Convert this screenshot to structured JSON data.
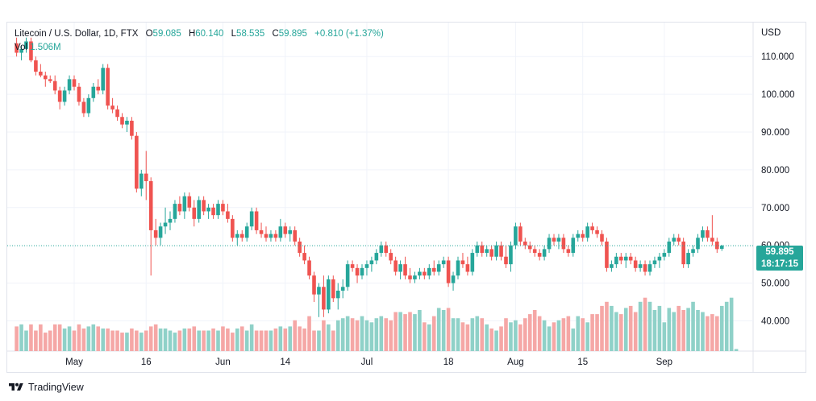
{
  "header": {
    "symbol": "Litecoin / U.S. Dollar, 1D, FTX",
    "open_label": "O",
    "open": "59.085",
    "high_label": "H",
    "high": "60.140",
    "low_label": "L",
    "low": "58.535",
    "close_label": "C",
    "close": "59.895",
    "change": "+0.810 (+1.37%)"
  },
  "volume": {
    "label": "Vol",
    "value": "1.506M"
  },
  "currency": "USD",
  "last_price": {
    "price": "59.895",
    "countdown": "18:17:15"
  },
  "footer": {
    "brand": "TradingView"
  },
  "colors": {
    "up": "#26a69a",
    "down": "#ef5350",
    "up_vol": "#8fd1c8",
    "down_vol": "#f5a7a6",
    "grid": "#f0f3fa"
  },
  "chart_data": {
    "type": "candlestick",
    "y_axis_ticks": [
      "110.000",
      "100.000",
      "90.000",
      "80.000",
      "70.000",
      "60.000",
      "50.000",
      "40.000"
    ],
    "y_tick_values": [
      110,
      100,
      90,
      80,
      70,
      60,
      50,
      40
    ],
    "ylim": [
      32,
      119
    ],
    "x_axis_labels": [
      "May",
      "16",
      "Jun",
      "14",
      "Jul",
      "18",
      "Aug",
      "15",
      "Sep"
    ],
    "x_label_day_index": [
      0,
      15,
      31,
      44,
      61,
      78,
      92,
      106,
      123
    ],
    "start_day_offset": -12,
    "ohlc": [
      [
        113.5,
        115,
        110,
        111
      ],
      [
        111,
        113,
        109,
        112
      ],
      [
        112,
        115,
        111,
        114
      ],
      [
        114,
        115,
        108.5,
        109
      ],
      [
        109,
        110,
        105,
        106
      ],
      [
        106,
        108,
        104.5,
        105
      ],
      [
        105,
        106,
        102,
        104
      ],
      [
        104,
        105,
        103,
        103.5
      ],
      [
        103.5,
        105,
        100,
        101
      ],
      [
        101,
        102,
        96,
        98
      ],
      [
        98,
        102,
        97,
        101
      ],
      [
        101,
        105,
        100,
        104
      ],
      [
        104,
        105,
        101,
        102
      ],
      [
        102,
        103,
        97,
        98
      ],
      [
        98,
        99,
        94,
        95
      ],
      [
        95,
        100,
        94,
        99
      ],
      [
        99,
        103,
        98,
        102
      ],
      [
        102,
        104,
        100,
        101
      ],
      [
        101,
        108,
        100,
        107
      ],
      [
        107,
        108,
        96,
        97
      ],
      [
        97,
        99,
        95,
        96
      ],
      [
        96,
        97,
        93,
        94
      ],
      [
        94,
        95,
        91,
        92
      ],
      [
        92,
        94,
        90,
        93
      ],
      [
        93,
        94,
        88,
        89
      ],
      [
        89,
        90,
        74,
        75
      ],
      [
        75,
        80,
        73,
        79
      ],
      [
        79,
        85,
        72,
        77
      ],
      [
        77,
        78,
        52,
        64
      ],
      [
        64,
        67,
        60,
        62
      ],
      [
        62,
        66,
        60,
        65
      ],
      [
        65,
        70,
        63,
        66
      ],
      [
        66,
        69,
        64,
        67
      ],
      [
        67,
        72,
        66,
        71
      ],
      [
        71,
        73,
        68,
        69
      ],
      [
        69,
        74,
        67,
        73
      ],
      [
        73,
        74,
        69,
        70
      ],
      [
        70,
        72,
        65,
        67
      ],
      [
        67,
        73,
        66,
        72
      ],
      [
        72,
        73,
        68,
        69
      ],
      [
        69,
        71,
        67,
        70
      ],
      [
        70,
        71,
        67,
        68
      ],
      [
        68,
        72,
        67,
        71
      ],
      [
        71,
        72,
        68,
        69
      ],
      [
        69,
        71,
        66,
        67
      ],
      [
        67,
        68,
        61,
        62
      ],
      [
        62,
        64,
        60,
        63
      ],
      [
        63,
        64,
        61,
        62
      ],
      [
        62,
        66,
        61,
        65
      ],
      [
        65,
        70,
        64,
        69
      ],
      [
        69,
        70,
        63,
        64
      ],
      [
        64,
        66,
        62,
        63
      ],
      [
        63,
        65,
        61,
        62
      ],
      [
        62,
        64,
        61,
        63
      ],
      [
        63,
        64,
        61,
        62
      ],
      [
        62,
        67,
        61,
        65
      ],
      [
        65,
        66,
        62,
        63
      ],
      [
        63,
        65,
        61,
        64
      ],
      [
        64,
        65,
        60,
        61
      ],
      [
        61,
        62,
        57,
        58
      ],
      [
        58,
        60,
        55,
        56
      ],
      [
        56,
        57,
        51,
        52
      ],
      [
        52,
        53,
        45,
        47
      ],
      [
        47,
        50,
        41,
        49
      ],
      [
        49,
        52,
        41,
        43
      ],
      [
        43,
        52,
        42,
        51
      ],
      [
        51,
        52,
        45,
        46
      ],
      [
        46,
        50,
        43,
        48
      ],
      [
        48,
        51,
        46,
        49
      ],
      [
        49,
        56,
        48,
        55
      ],
      [
        55,
        56,
        53,
        54
      ],
      [
        54,
        55,
        50,
        52
      ],
      [
        52,
        55,
        51,
        54
      ],
      [
        54,
        56,
        52,
        55
      ],
      [
        55,
        57,
        53,
        56
      ],
      [
        56,
        59,
        55,
        58
      ],
      [
        58,
        61,
        57,
        60
      ],
      [
        60,
        61,
        57,
        58
      ],
      [
        58,
        59,
        55,
        56
      ],
      [
        56,
        57,
        52,
        53
      ],
      [
        53,
        56,
        51,
        55
      ],
      [
        55,
        57,
        51,
        52
      ],
      [
        52,
        54,
        50,
        51
      ],
      [
        51,
        53,
        50,
        52
      ],
      [
        52,
        54,
        51,
        53
      ],
      [
        53,
        54,
        51,
        52
      ],
      [
        52,
        55,
        51,
        54
      ],
      [
        54,
        56,
        52,
        53
      ],
      [
        53,
        56,
        52,
        55
      ],
      [
        55,
        57,
        54,
        56
      ],
      [
        56,
        57,
        49,
        50
      ],
      [
        50,
        53,
        48,
        52
      ],
      [
        52,
        57,
        51,
        56
      ],
      [
        56,
        58,
        54,
        55
      ],
      [
        55,
        57,
        52,
        53
      ],
      [
        53,
        59,
        52,
        58
      ],
      [
        58,
        61,
        57,
        60
      ],
      [
        60,
        61,
        57,
        58
      ],
      [
        58,
        60,
        57,
        59
      ],
      [
        59,
        60,
        56,
        57
      ],
      [
        57,
        61,
        56,
        60
      ],
      [
        60,
        61,
        56,
        57
      ],
      [
        57,
        60,
        54,
        55
      ],
      [
        55,
        61,
        53,
        60
      ],
      [
        60,
        66,
        59,
        65
      ],
      [
        65,
        66,
        60,
        61
      ],
      [
        61,
        62,
        59,
        60
      ],
      [
        60,
        61,
        58,
        59
      ],
      [
        59,
        60,
        57,
        58
      ],
      [
        58,
        59,
        56,
        57
      ],
      [
        57,
        60,
        56,
        59
      ],
      [
        59,
        63,
        58,
        62
      ],
      [
        62,
        63,
        60,
        61
      ],
      [
        61,
        63,
        59,
        62
      ],
      [
        62,
        63,
        58,
        59
      ],
      [
        59,
        60,
        57,
        58
      ],
      [
        58,
        63,
        57,
        62
      ],
      [
        62,
        64,
        61,
        63
      ],
      [
        63,
        64,
        61,
        62
      ],
      [
        62,
        66,
        61,
        65
      ],
      [
        65,
        66,
        63,
        64
      ],
      [
        64,
        65,
        62,
        63
      ],
      [
        63,
        64,
        60,
        61
      ],
      [
        61,
        62,
        53,
        54
      ],
      [
        54,
        56,
        53,
        55
      ],
      [
        55,
        58,
        54,
        57
      ],
      [
        57,
        58,
        55,
        56
      ],
      [
        56,
        58,
        54,
        57
      ],
      [
        57,
        58,
        55,
        56
      ],
      [
        56,
        57,
        53,
        54
      ],
      [
        54,
        56,
        53,
        55
      ],
      [
        55,
        56,
        52,
        53
      ],
      [
        53,
        56,
        52,
        55
      ],
      [
        55,
        57,
        54,
        56
      ],
      [
        56,
        58,
        54,
        57
      ],
      [
        57,
        59,
        56,
        58
      ],
      [
        58,
        62,
        57,
        61
      ],
      [
        61,
        63,
        60,
        62
      ],
      [
        62,
        63,
        60,
        61
      ],
      [
        61,
        62,
        54,
        55
      ],
      [
        55,
        59,
        54,
        58
      ],
      [
        58,
        60,
        57,
        59
      ],
      [
        59,
        63,
        58,
        62
      ],
      [
        62,
        65,
        61,
        64
      ],
      [
        64,
        65,
        61,
        62
      ],
      [
        62,
        68,
        60,
        61
      ],
      [
        61,
        62,
        58,
        59
      ],
      [
        59.085,
        60.14,
        58.535,
        59.895
      ]
    ],
    "volume": [
      12,
      13,
      10,
      13,
      10,
      13,
      9,
      10,
      13,
      13,
      11,
      12,
      10,
      13,
      11,
      12,
      13,
      12,
      11,
      11,
      10,
      10,
      9,
      9,
      11,
      10,
      9,
      10,
      12,
      13,
      11,
      11,
      10,
      9,
      10,
      11,
      11,
      12,
      10,
      10,
      10,
      11,
      10,
      12,
      11,
      9,
      11,
      12,
      10,
      13,
      10,
      10,
      10,
      10,
      11,
      12,
      11,
      12,
      15,
      12,
      11,
      17,
      10,
      10,
      15,
      13,
      10,
      15,
      16,
      17,
      16,
      15,
      17,
      15,
      14,
      16,
      17,
      16,
      15,
      19,
      19,
      18,
      19,
      18,
      20,
      14,
      13,
      17,
      21,
      20,
      21,
      16,
      16,
      14,
      13,
      16,
      17,
      16,
      13,
      11,
      10,
      12,
      16,
      14,
      15,
      13,
      16,
      18,
      20,
      17,
      15,
      12,
      14,
      15,
      16,
      17,
      11,
      17,
      16,
      14,
      18,
      18,
      22,
      24,
      22,
      19,
      18,
      21,
      22,
      19,
      24,
      26,
      24,
      20,
      22,
      14,
      21,
      19,
      22,
      20,
      21,
      24,
      20,
      19,
      17,
      18,
      17,
      22,
      24,
      26,
      1
    ],
    "volume_colors": "ohlc_direction"
  }
}
